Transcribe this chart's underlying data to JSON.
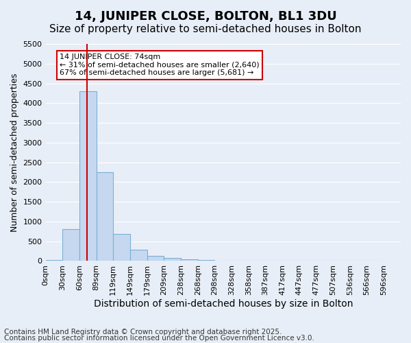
{
  "title": "14, JUNIPER CLOSE, BOLTON, BL1 3DU",
  "subtitle": "Size of property relative to semi-detached houses in Bolton",
  "xlabel": "Distribution of semi-detached houses by size in Bolton",
  "ylabel": "Number of semi-detached properties",
  "bins": [
    "0sqm",
    "30sqm",
    "60sqm",
    "89sqm",
    "119sqm",
    "149sqm",
    "179sqm",
    "209sqm",
    "238sqm",
    "268sqm",
    "298sqm",
    "328sqm",
    "358sqm",
    "387sqm",
    "417sqm",
    "447sqm",
    "477sqm",
    "507sqm",
    "536sqm",
    "566sqm",
    "596sqm"
  ],
  "values": [
    30,
    800,
    4300,
    2250,
    680,
    280,
    130,
    70,
    50,
    20,
    5,
    0,
    0,
    0,
    0,
    0,
    0,
    0,
    0,
    0
  ],
  "bar_color": "#c5d8f0",
  "bar_edgecolor": "#7bafd4",
  "vline_x": 2.467,
  "annotation_text": "14 JUNIPER CLOSE: 74sqm\n← 31% of semi-detached houses are smaller (2,640)\n67% of semi-detached houses are larger (5,681) →",
  "annotation_box_color": "#ffffff",
  "annotation_box_edgecolor": "#cc0000",
  "ylim": [
    0,
    5500
  ],
  "yticks": [
    0,
    500,
    1000,
    1500,
    2000,
    2500,
    3000,
    3500,
    4000,
    4500,
    5000,
    5500
  ],
  "background_color": "#e8eef7",
  "grid_color": "#ffffff",
  "footer_line1": "Contains HM Land Registry data © Crown copyright and database right 2025.",
  "footer_line2": "Contains public sector information licensed under the Open Government Licence v3.0.",
  "title_fontsize": 13,
  "subtitle_fontsize": 11,
  "xlabel_fontsize": 10,
  "ylabel_fontsize": 9,
  "tick_fontsize": 8,
  "footer_fontsize": 7.5
}
